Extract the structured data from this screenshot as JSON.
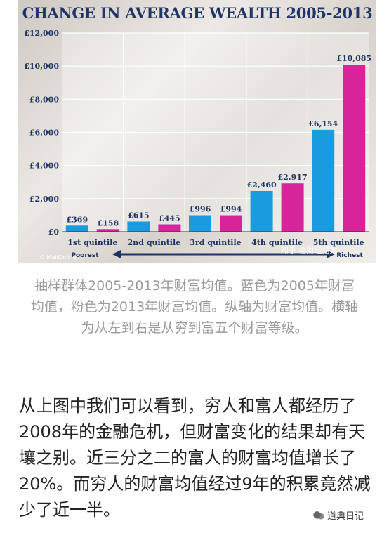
{
  "chart_data": {
    "type": "bar",
    "title": "CHANGE IN AVERAGE WEALTH 2005-2013",
    "categories": [
      "1st quintile",
      "2nd quintile",
      "3rd quintile",
      "4th quintile",
      "5th quintile"
    ],
    "series": [
      {
        "values": [
          369,
          615,
          996,
          2460,
          6154
        ],
        "color": "#1a9be0"
      },
      {
        "values": [
          158,
          445,
          994,
          2917,
          10085
        ],
        "color": "#d8249a"
      }
    ],
    "value_labels": [
      [
        "£369",
        "£615",
        "£996",
        "£2,460",
        "£6,154"
      ],
      [
        "£158",
        "£445",
        "£994",
        "£2,917",
        "£10,085"
      ]
    ],
    "ylim": [
      0,
      12000
    ],
    "yticks": [
      0,
      2000,
      4000,
      6000,
      8000,
      10000,
      12000
    ],
    "ytick_labels": [
      "£0",
      "£2,000",
      "£4,000",
      "£6,000",
      "£8,000",
      "£10,000",
      "£12,000"
    ],
    "grid": true,
    "poorest_label": "Poorest",
    "richest_label": "Richest",
    "source_label": "© MailOnline"
  },
  "watermark": "知乎 @财经猎案",
  "caption": "抽样群体2005-2013年财富均值。蓝色为2005年财富均值，粉色为2013年财富均值。纵轴为财富均值。横轴为从左到右是从穷到富五个财富等级。",
  "body": "从上图中我们可以看到，穷人和富人都经历了2008年的金融危机，但财富变化的结果却有天壤之别。近三分之二的富人的财富均值增长了20%。而穷人的财富均值经过9年的积累竟然减少了近一半。",
  "footer": {
    "account": "道典日记",
    "icon": "wechat-icon"
  }
}
